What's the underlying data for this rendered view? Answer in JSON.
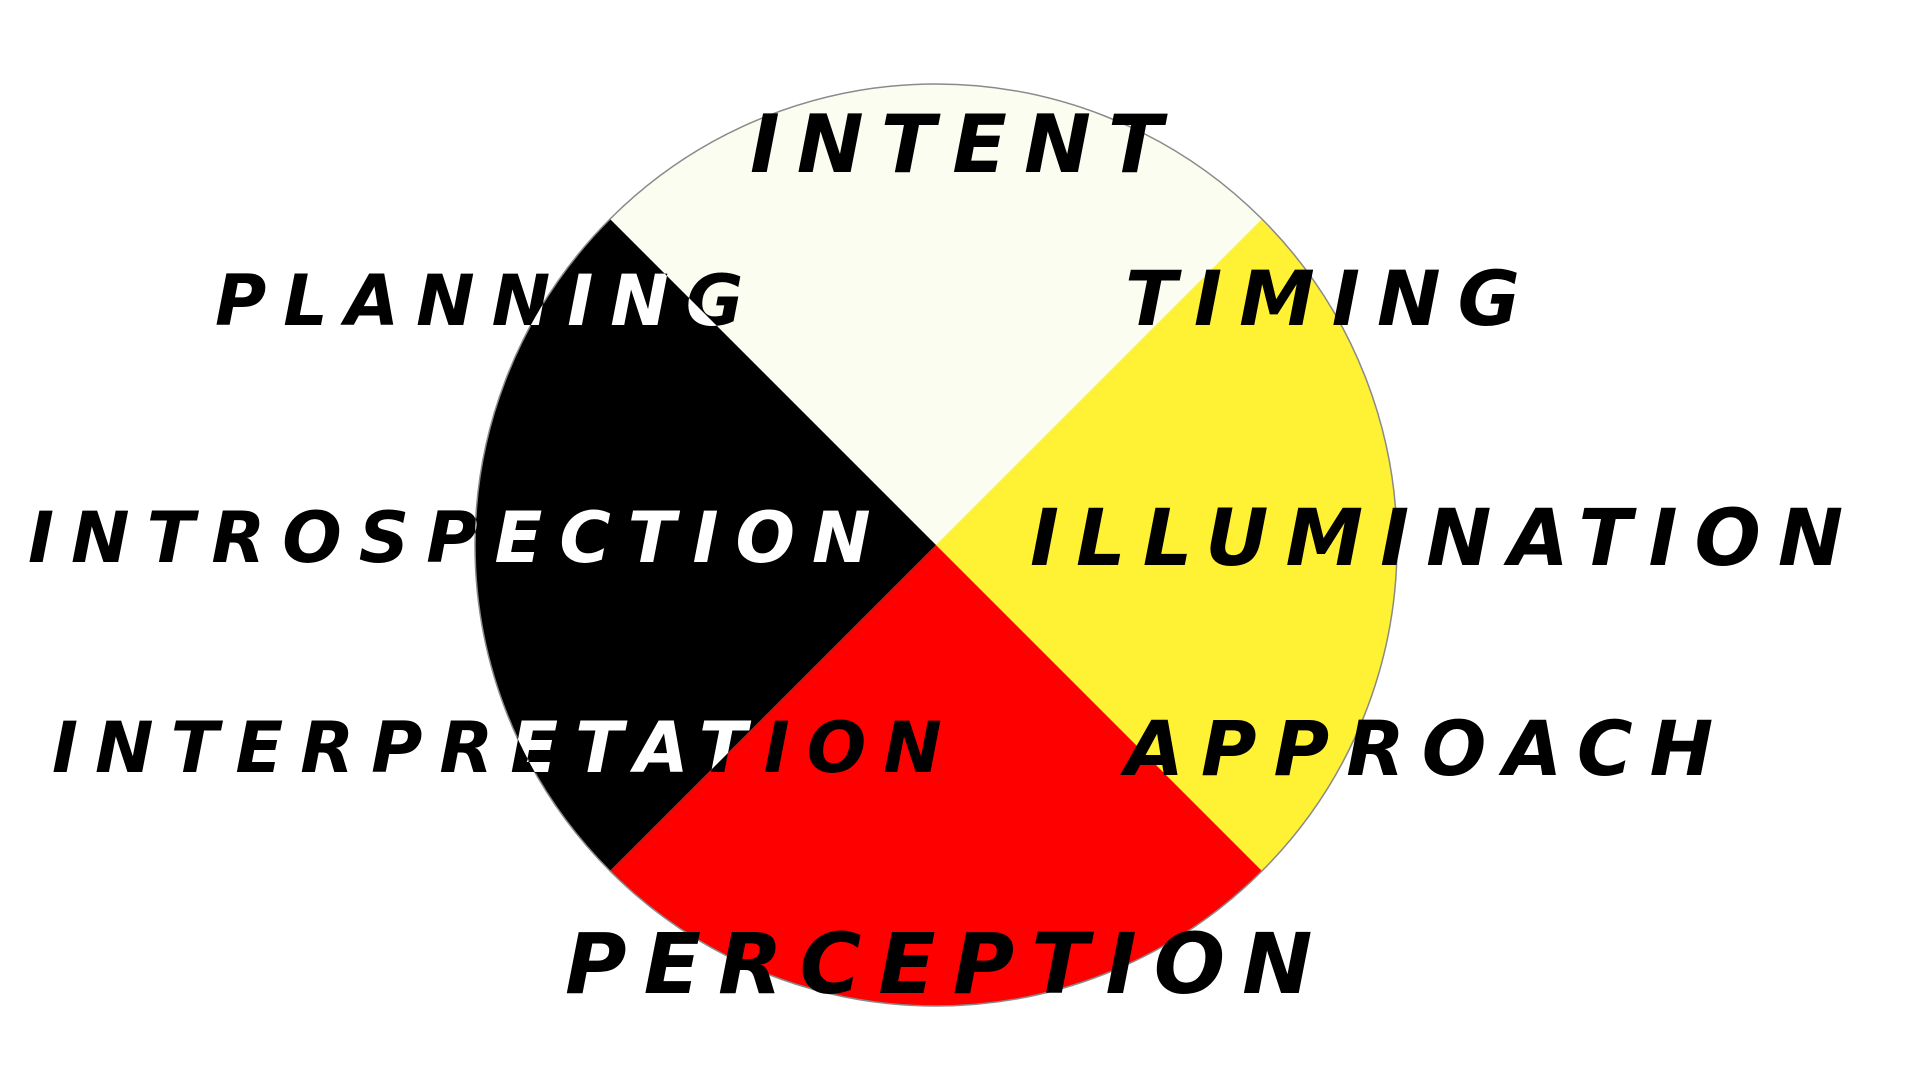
{
  "wheel": {
    "quadrants": [
      {
        "name": "top",
        "color": "#fbfdf1"
      },
      {
        "name": "right",
        "color": "#fff134"
      },
      {
        "name": "bottom",
        "color": "#ff0000"
      },
      {
        "name": "left",
        "color": "#000000"
      }
    ],
    "labels": {
      "intent": "INTENT",
      "planning": "PLANNING",
      "timing": "TIMING",
      "introspection": "INTROSPECTION",
      "illumination": "ILLUMINATION",
      "interpretation": "INTERPRETATION",
      "approach": "APPROACH",
      "perception": "PERCEPTION"
    }
  }
}
